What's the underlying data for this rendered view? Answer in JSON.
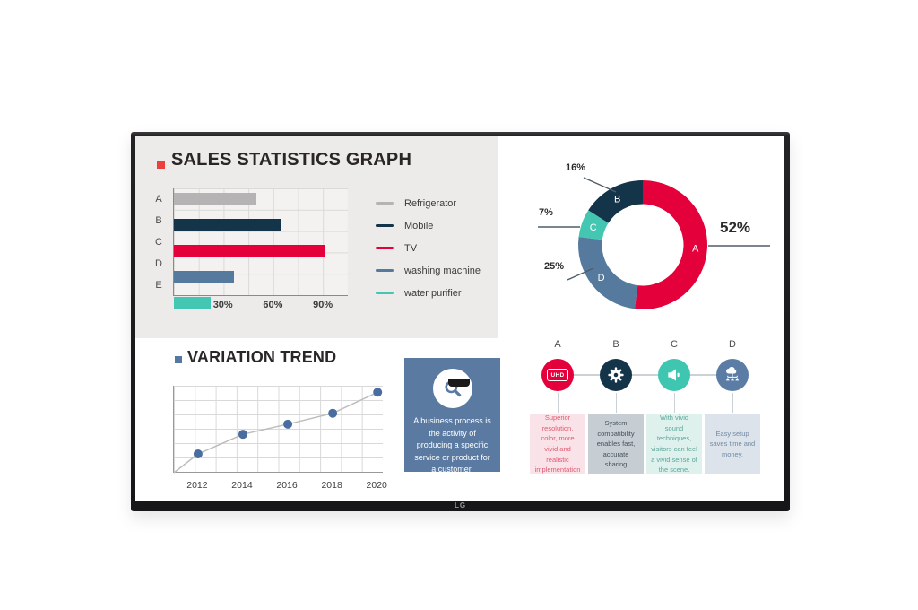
{
  "brand": {
    "logo_text": "LG"
  },
  "screen": {
    "sales": {
      "title": "SALES STATISTICS GRAPH"
    },
    "variation": {
      "title": "VARIATION TREND"
    },
    "process_card": {
      "text": "A business process is the activity of producing a specific service or product for a customer."
    },
    "features": [
      {
        "letter": "A",
        "icon": "uhd-tv",
        "icon_text": "UHD",
        "color": "#e4003b",
        "box_bg": "#fae3e8",
        "text_color": "#dd5b72",
        "text": "Superior resolution, color, more vivid and realistic implementation"
      },
      {
        "letter": "B",
        "icon": "gear",
        "color": "#14344a",
        "box_bg": "#c6ced3",
        "text_color": "#44505a",
        "text": "System compatibility enables fast, accurate sharing"
      },
      {
        "letter": "C",
        "icon": "speaker",
        "color": "#3fc6b1",
        "box_bg": "#dff1ed",
        "text_color": "#5aa79b",
        "text": "With vivid sound techniques, visitors can feel a vivid sense of the scene."
      },
      {
        "letter": "D",
        "icon": "cloud-network",
        "color": "#5b7ca4",
        "box_bg": "#dce3ea",
        "text_color": "#7289a3",
        "text": "Easy setup saves time and money."
      }
    ]
  },
  "chart_data": [
    {
      "type": "bar",
      "title": "SALES STATISTICS GRAPH",
      "orientation": "horizontal",
      "categories": [
        "A",
        "B",
        "C",
        "D",
        "E"
      ],
      "values": [
        50,
        65,
        91,
        36,
        22
      ],
      "unit": "%",
      "xlim": [
        0,
        105
      ],
      "xticks": [
        {
          "value": 30,
          "label": "30%"
        },
        {
          "value": 60,
          "label": "60%"
        },
        {
          "value": 90,
          "label": "90%"
        }
      ],
      "grid": true,
      "colors": [
        "#b4b4b4",
        "#14344a",
        "#e4003b",
        "#56799e",
        "#43c7b2"
      ],
      "legend_position": "right",
      "legend": [
        {
          "label": "Refrigerator",
          "color": "#b4b4b4"
        },
        {
          "label": "Mobile",
          "color": "#14344a"
        },
        {
          "label": "TV",
          "color": "#e4003b"
        },
        {
          "label": "washing machine",
          "color": "#56799e"
        },
        {
          "label": "water purifier",
          "color": "#43c7b2"
        }
      ]
    },
    {
      "type": "pie",
      "subtype": "donut",
      "start_angle_deg": 0,
      "direction": "clockwise",
      "slices": [
        {
          "label": "A",
          "value": 52,
          "pct_label": "52%",
          "color": "#e4003b"
        },
        {
          "label": "D",
          "value": 25,
          "pct_label": "25%",
          "color": "#56799e"
        },
        {
          "label": "C",
          "value": 7,
          "pct_label": "7%",
          "color": "#43c7b2"
        },
        {
          "label": "B",
          "value": 16,
          "pct_label": "16%",
          "color": "#14344a"
        }
      ]
    },
    {
      "type": "line",
      "title": "VARIATION TREND",
      "x": [
        2012,
        2014,
        2016,
        2018,
        2020
      ],
      "values": [
        1.3,
        2.65,
        3.35,
        4.1,
        5.55
      ],
      "ylim": [
        0,
        6
      ],
      "starts_at_origin": true,
      "grid": true,
      "line_color": "#bdbdbd",
      "point_color": "#4a6da1"
    }
  ]
}
